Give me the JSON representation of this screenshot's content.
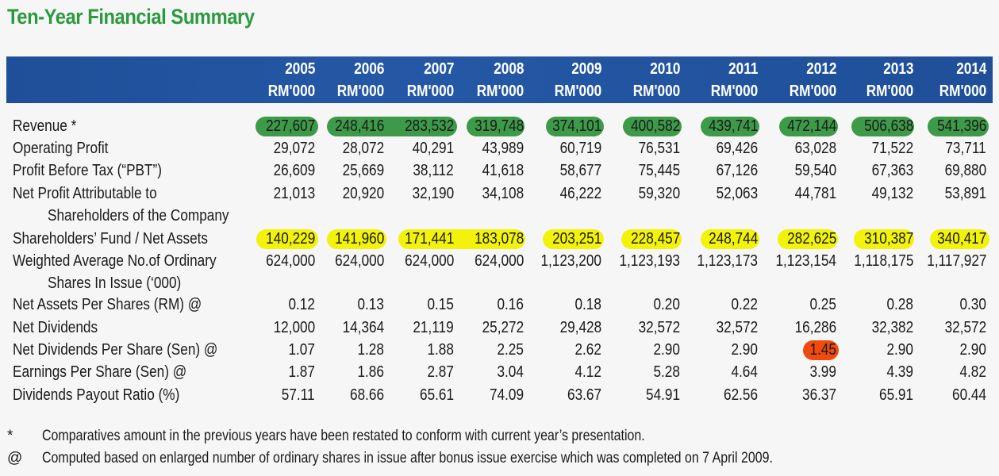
{
  "title": "Ten-Year Financial Summary",
  "colors": {
    "title": "#2a9a3e",
    "header_band": "#2458a6",
    "highlight_revenue": "#3d9a48",
    "highlight_shareholders_fund": "#f3f20a",
    "highlight_alert": "#f04a0c"
  },
  "columns": [
    {
      "year": "2005",
      "unit": "RM'000"
    },
    {
      "year": "2006",
      "unit": "RM'000"
    },
    {
      "year": "2007",
      "unit": "RM'000"
    },
    {
      "year": "2008",
      "unit": "RM'000"
    },
    {
      "year": "2009",
      "unit": "RM'000"
    },
    {
      "year": "2010",
      "unit": "RM'000"
    },
    {
      "year": "2011",
      "unit": "RM'000"
    },
    {
      "year": "2012",
      "unit": "RM'000"
    },
    {
      "year": "2013",
      "unit": "RM'000"
    },
    {
      "year": "2014",
      "unit": "RM'000"
    }
  ],
  "rows": [
    {
      "label": "Revenue *",
      "label2": "",
      "highlight": "green",
      "values": [
        "227,607",
        "248,416",
        "283,532",
        "319,748",
        "374,101",
        "400,582",
        "439,741",
        "472,144",
        "506,638",
        "541,396"
      ]
    },
    {
      "label": "Operating Profit",
      "label2": "",
      "values": [
        "29,072",
        "28,072",
        "40,291",
        "43,989",
        "60,719",
        "76,531",
        "69,426",
        "63,028",
        "71,522",
        "73,711"
      ]
    },
    {
      "label": "Profit Before Tax (“PBT”)",
      "label2": "",
      "values": [
        "26,609",
        "25,669",
        "38,112",
        "41,618",
        "58,677",
        "75,445",
        "67,126",
        "59,540",
        "67,363",
        "69,880"
      ]
    },
    {
      "label": "Net Profit Attributable to",
      "label2": "Shareholders of the Company",
      "values": [
        "21,013",
        "20,920",
        "32,190",
        "34,108",
        "46,222",
        "59,320",
        "52,063",
        "44,781",
        "49,132",
        "53,891"
      ]
    },
    {
      "label": "Shareholders’ Fund / Net Assets",
      "label2": "",
      "highlight": "yellow",
      "values": [
        "140,229",
        "141,960",
        "171,441",
        "183,078",
        "203,251",
        "228,457",
        "248,744",
        "282,625",
        "310,387",
        "340,417"
      ]
    },
    {
      "label": "Weighted Average No.of Ordinary",
      "label2": "Shares In Issue (‘000)",
      "values": [
        "624,000",
        "624,000",
        "624,000",
        "624,000",
        "1,123,200",
        "1,123,193",
        "1,123,173",
        "1,123,154",
        "1,118,175",
        "1,117,927"
      ]
    },
    {
      "label": "Net Assets Per Shares (RM) @",
      "label2": "",
      "values": [
        "0.12",
        "0.13",
        "0.15",
        "0.16",
        "0.18",
        "0.20",
        "0.22",
        "0.25",
        "0.28",
        "0.30"
      ]
    },
    {
      "label": "Net Dividends",
      "label2": "",
      "values": [
        "12,000",
        "14,364",
        "21,119",
        "25,272",
        "29,428",
        "32,572",
        "32,572",
        "16,286",
        "32,382",
        "32,572"
      ]
    },
    {
      "label": "Net Dividends Per Share (Sen) @",
      "label2": "",
      "highlight_cell": {
        "column": 7,
        "color": "red"
      },
      "values": [
        "1.07",
        "1.28",
        "1.88",
        "2.25",
        "2.62",
        "2.90",
        "2.90",
        "1.45",
        "2.90",
        "2.90"
      ]
    },
    {
      "label": "Earnings Per Share (Sen) @",
      "label2": "",
      "values": [
        "1.87",
        "1.86",
        "2.87",
        "3.04",
        "4.12",
        "5.28",
        "4.64",
        "3.99",
        "4.39",
        "4.82"
      ]
    },
    {
      "label": "Dividends Payout Ratio (%)",
      "label2": "",
      "values": [
        "57.11",
        "68.66",
        "65.61",
        "74.09",
        "63.67",
        "54.91",
        "62.56",
        "36.37",
        "65.91",
        "60.44"
      ]
    }
  ],
  "footnotes": [
    {
      "mark": "*",
      "text": "Comparatives amount in the previous years have been restated to conform with current year’s presentation."
    },
    {
      "mark": "@",
      "text": "Computed based on enlarged number of ordinary shares in issue after bonus issue exercise which was completed on 7 April 2009."
    }
  ]
}
